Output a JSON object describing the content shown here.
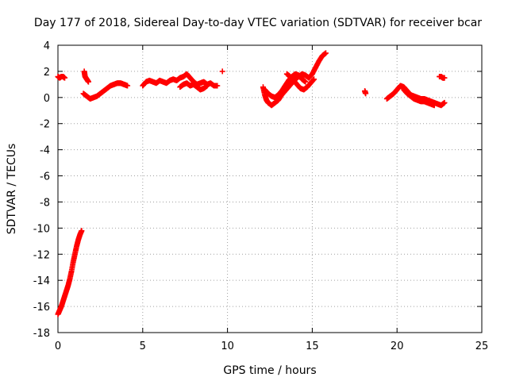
{
  "chart_data": {
    "type": "scatter",
    "title": "Day 177 of 2018, Sidereal Day-to-day VTEC variation (SDTVAR) for receiver bcar",
    "xlabel": "GPS time / hours",
    "ylabel": "SDTVAR / TECUs",
    "xlim": [
      0,
      25
    ],
    "ylim": [
      -18,
      4
    ],
    "xticks": [
      0,
      5,
      10,
      15,
      20,
      25
    ],
    "yticks": [
      4,
      2,
      0,
      -2,
      -4,
      -6,
      -8,
      -10,
      -12,
      -14,
      -16,
      -18
    ],
    "grid": true,
    "marker": "plus",
    "color": "#ff0000",
    "series": [
      {
        "name": "SDTVAR",
        "segments": [
          [
            [
              0.0,
              -16.6
            ],
            [
              0.1,
              -16.3
            ],
            [
              0.2,
              -16.0
            ],
            [
              0.3,
              -15.6
            ],
            [
              0.4,
              -15.2
            ],
            [
              0.5,
              -14.8
            ],
            [
              0.6,
              -14.4
            ],
            [
              0.7,
              -13.9
            ],
            [
              0.8,
              -13.3
            ],
            [
              0.9,
              -12.6
            ],
            [
              1.0,
              -12.0
            ],
            [
              1.1,
              -11.4
            ],
            [
              1.2,
              -10.9
            ],
            [
              1.3,
              -10.5
            ],
            [
              1.4,
              -10.2
            ]
          ],
          [
            [
              0.0,
              1.6
            ],
            [
              0.1,
              1.5
            ],
            [
              0.2,
              1.6
            ],
            [
              0.3,
              1.6
            ],
            [
              0.4,
              1.5
            ]
          ],
          [
            [
              1.55,
              2.0
            ],
            [
              1.6,
              1.6
            ],
            [
              1.7,
              1.4
            ],
            [
              1.8,
              1.2
            ]
          ],
          [
            [
              1.5,
              0.3
            ],
            [
              1.7,
              0.1
            ],
            [
              1.9,
              -0.1
            ],
            [
              2.1,
              0.0
            ],
            [
              2.3,
              0.1
            ],
            [
              2.5,
              0.3
            ],
            [
              2.7,
              0.5
            ],
            [
              2.9,
              0.7
            ],
            [
              3.1,
              0.9
            ],
            [
              3.3,
              1.0
            ],
            [
              3.5,
              1.1
            ],
            [
              3.7,
              1.1
            ],
            [
              3.9,
              1.0
            ],
            [
              4.1,
              0.9
            ]
          ],
          [
            [
              5.0,
              0.9
            ],
            [
              5.2,
              1.2
            ],
            [
              5.4,
              1.3
            ],
            [
              5.6,
              1.2
            ],
            [
              5.8,
              1.1
            ],
            [
              6.0,
              1.3
            ],
            [
              6.2,
              1.2
            ],
            [
              6.4,
              1.1
            ],
            [
              6.6,
              1.3
            ],
            [
              6.8,
              1.4
            ],
            [
              7.0,
              1.3
            ],
            [
              7.2,
              1.5
            ],
            [
              7.4,
              1.6
            ],
            [
              7.6,
              1.8
            ],
            [
              7.8,
              1.5
            ],
            [
              8.0,
              1.2
            ],
            [
              8.2,
              1.0
            ],
            [
              8.4,
              1.1
            ],
            [
              8.6,
              1.2
            ],
            [
              8.8,
              1.0
            ],
            [
              9.0,
              1.1
            ],
            [
              9.2,
              0.9
            ],
            [
              9.4,
              0.9
            ]
          ],
          [
            [
              7.2,
              0.8
            ],
            [
              7.4,
              1.0
            ],
            [
              7.6,
              1.1
            ],
            [
              7.8,
              0.9
            ],
            [
              8.0,
              1.0
            ],
            [
              8.2,
              0.8
            ],
            [
              8.4,
              0.6
            ],
            [
              8.6,
              0.7
            ],
            [
              8.8,
              0.9
            ]
          ],
          [
            [
              9.7,
              2.0
            ]
          ],
          [
            [
              12.1,
              0.8
            ],
            [
              12.2,
              0.2
            ],
            [
              12.3,
              -0.2
            ],
            [
              12.4,
              -0.4
            ],
            [
              12.6,
              -0.6
            ],
            [
              12.8,
              -0.4
            ],
            [
              13.0,
              -0.2
            ],
            [
              13.2,
              0.2
            ],
            [
              13.4,
              0.5
            ],
            [
              13.6,
              0.8
            ],
            [
              13.8,
              1.1
            ],
            [
              14.0,
              1.4
            ],
            [
              14.2,
              1.6
            ],
            [
              14.4,
              1.8
            ],
            [
              14.6,
              1.7
            ],
            [
              14.8,
              1.5
            ],
            [
              15.0,
              1.8
            ],
            [
              15.2,
              2.3
            ],
            [
              15.4,
              2.8
            ],
            [
              15.6,
              3.2
            ],
            [
              15.8,
              3.4
            ]
          ],
          [
            [
              12.2,
              0.6
            ],
            [
              12.4,
              0.3
            ],
            [
              12.6,
              0.1
            ],
            [
              12.8,
              0.0
            ],
            [
              13.0,
              0.2
            ],
            [
              13.2,
              0.5
            ],
            [
              13.4,
              0.9
            ],
            [
              13.6,
              1.3
            ],
            [
              13.8,
              1.6
            ],
            [
              14.0,
              1.8
            ],
            [
              14.2,
              1.7
            ],
            [
              14.4,
              1.4
            ],
            [
              14.6,
              1.2
            ]
          ],
          [
            [
              13.5,
              1.8
            ],
            [
              13.7,
              1.6
            ],
            [
              13.9,
              1.3
            ],
            [
              14.1,
              1.0
            ],
            [
              14.3,
              0.7
            ],
            [
              14.5,
              0.6
            ],
            [
              14.7,
              0.8
            ],
            [
              14.9,
              1.1
            ],
            [
              15.1,
              1.4
            ]
          ],
          [
            [
              18.1,
              0.5
            ],
            [
              18.15,
              0.3
            ]
          ],
          [
            [
              19.4,
              -0.1
            ],
            [
              19.6,
              0.1
            ],
            [
              19.8,
              0.3
            ],
            [
              20.0,
              0.6
            ],
            [
              20.2,
              0.9
            ],
            [
              20.4,
              0.8
            ],
            [
              20.6,
              0.5
            ],
            [
              20.8,
              0.2
            ],
            [
              21.0,
              0.1
            ],
            [
              21.2,
              0.0
            ],
            [
              21.4,
              -0.1
            ],
            [
              21.6,
              -0.1
            ],
            [
              21.8,
              -0.2
            ],
            [
              22.0,
              -0.3
            ],
            [
              22.2,
              -0.4
            ],
            [
              22.4,
              -0.5
            ],
            [
              22.6,
              -0.6
            ],
            [
              22.8,
              -0.4
            ]
          ],
          [
            [
              20.4,
              0.6
            ],
            [
              20.6,
              0.3
            ],
            [
              20.8,
              0.1
            ],
            [
              21.0,
              -0.1
            ],
            [
              21.2,
              -0.2
            ],
            [
              21.4,
              -0.3
            ],
            [
              21.6,
              -0.3
            ],
            [
              21.8,
              -0.4
            ],
            [
              22.0,
              -0.5
            ],
            [
              22.2,
              -0.6
            ]
          ],
          [
            [
              22.5,
              1.6
            ],
            [
              22.6,
              1.6
            ],
            [
              22.7,
              1.5
            ],
            [
              22.8,
              1.5
            ]
          ]
        ]
      }
    ]
  }
}
